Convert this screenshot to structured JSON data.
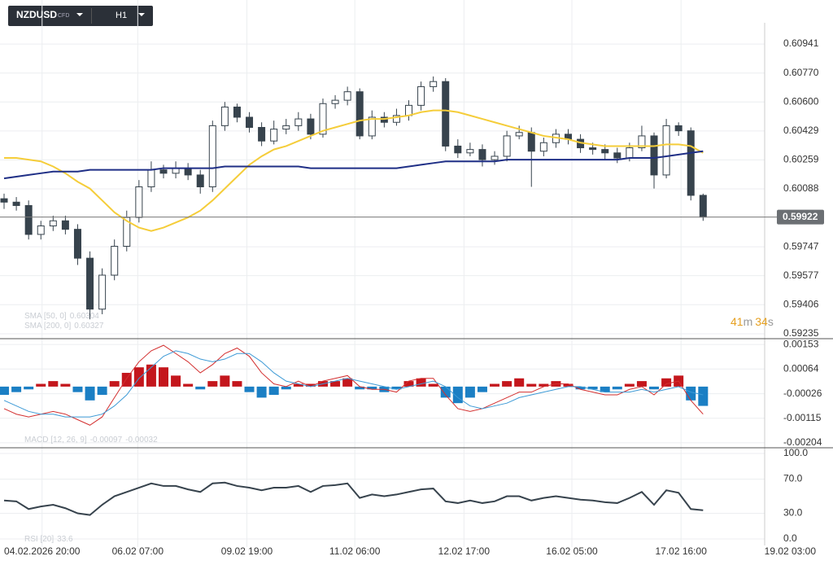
{
  "header": {
    "symbol": "NZDUSD",
    "kind": "CFD",
    "timeframe": "H1"
  },
  "countdown": {
    "minutes": 41,
    "minutes_unit": "m",
    "seconds": 34,
    "seconds_unit": "s"
  },
  "chart_data": [
    {
      "type": "candlestick",
      "xlim": [
        -0.2,
        66
      ],
      "ylim": [
        0.59206,
        0.61066
      ],
      "xticks": [
        {
          "value": 3.1,
          "label": "04.02.2026 20:00"
        },
        {
          "value": 10.9,
          "label": "06.02 07:00"
        },
        {
          "value": 19.8,
          "label": "09.02 19:00"
        },
        {
          "value": 28.6,
          "label": "11.02 06:00"
        },
        {
          "value": 37.5,
          "label": "12.02 17:00"
        },
        {
          "value": 46.3,
          "label": "16.02 05:00"
        },
        {
          "value": 55.2,
          "label": "17.02 16:00"
        },
        {
          "value": 64.1,
          "label": "19.02 03:00"
        }
      ],
      "yticks": [
        0.60941,
        0.6077,
        0.606,
        0.60429,
        0.60259,
        0.60088,
        0.59747,
        0.59577,
        0.59406,
        0.59235
      ],
      "ytick_labels": [
        "0.60941",
        "0.60770",
        "0.60600",
        "0.60429",
        "0.60259",
        "0.60088",
        "0.59747",
        "0.59577",
        "0.59406",
        "0.59235"
      ],
      "last_price": 0.59922,
      "last_price_label": "0.59922",
      "color": "#37434d",
      "open": [
        0.6003,
        0.6001,
        0.5999,
        0.5982,
        0.5987,
        0.599,
        0.5985,
        0.5968,
        0.5938,
        0.5958,
        0.5975,
        0.5992,
        0.601,
        0.602,
        0.6018,
        0.6021,
        0.6017,
        0.601,
        0.6046,
        0.6057,
        0.6051,
        0.6045,
        0.6037,
        0.6044,
        0.6046,
        0.605,
        0.6041,
        0.6059,
        0.6061,
        0.6066,
        0.604,
        0.6051,
        0.6048,
        0.6052,
        0.6058,
        0.6069,
        0.6072,
        0.6034,
        0.603,
        0.6032,
        0.6026,
        0.6028,
        0.604,
        0.6042,
        0.6031,
        0.6036,
        0.6041,
        0.6038,
        0.6033,
        0.6032,
        0.603,
        0.6027,
        0.6033,
        0.604,
        0.6017,
        0.6046,
        0.6043,
        0.6005
      ],
      "high": [
        0.6006,
        0.6004,
        0.6002,
        0.599,
        0.5993,
        0.5993,
        0.5988,
        0.5972,
        0.5962,
        0.5979,
        0.5996,
        0.6014,
        0.6025,
        0.6023,
        0.6025,
        0.6024,
        0.602,
        0.6049,
        0.606,
        0.6059,
        0.6054,
        0.6048,
        0.6049,
        0.605,
        0.6054,
        0.6053,
        0.6062,
        0.6064,
        0.6069,
        0.6068,
        0.6055,
        0.6054,
        0.6056,
        0.6061,
        0.6072,
        0.6075,
        0.6074,
        0.6038,
        0.6036,
        0.6035,
        0.6031,
        0.6043,
        0.6046,
        0.6045,
        0.6039,
        0.6044,
        0.6044,
        0.6041,
        0.6036,
        0.6035,
        0.6033,
        0.6036,
        0.6046,
        0.6042,
        0.605,
        0.6048,
        0.6045,
        0.6006
      ],
      "low": [
        0.5997,
        0.5996,
        0.5979,
        0.5979,
        0.5984,
        0.5982,
        0.5964,
        0.5932,
        0.5935,
        0.5955,
        0.5972,
        0.5989,
        0.6007,
        0.6015,
        0.6015,
        0.6014,
        0.6006,
        0.6007,
        0.6043,
        0.6048,
        0.6042,
        0.6034,
        0.6035,
        0.6041,
        0.6043,
        0.6038,
        0.6039,
        0.6056,
        0.6058,
        0.6038,
        0.6038,
        0.6045,
        0.6046,
        0.6049,
        0.6055,
        0.6066,
        0.6031,
        0.6027,
        0.6028,
        0.6022,
        0.6023,
        0.6025,
        0.6038,
        0.601,
        0.6028,
        0.6033,
        0.6035,
        0.603,
        0.6029,
        0.6026,
        0.6024,
        0.6025,
        0.6031,
        0.6009,
        0.6015,
        0.604,
        0.6002,
        0.599
      ],
      "close": [
        0.6001,
        0.5999,
        0.5982,
        0.5987,
        0.599,
        0.5985,
        0.5968,
        0.5938,
        0.5958,
        0.5975,
        0.5992,
        0.601,
        0.602,
        0.6018,
        0.6021,
        0.6017,
        0.601,
        0.6046,
        0.6057,
        0.6051,
        0.6045,
        0.6037,
        0.6044,
        0.6046,
        0.605,
        0.6041,
        0.6059,
        0.6061,
        0.6066,
        0.604,
        0.6051,
        0.6048,
        0.6052,
        0.6058,
        0.6069,
        0.6072,
        0.6034,
        0.603,
        0.6032,
        0.6026,
        0.6028,
        0.604,
        0.6042,
        0.6031,
        0.6036,
        0.6041,
        0.6038,
        0.6033,
        0.6032,
        0.603,
        0.6027,
        0.6033,
        0.604,
        0.6017,
        0.6046,
        0.6043,
        0.6005,
        0.59922
      ],
      "series": [
        {
          "name": "SMA [50, 0]",
          "last": 0.60304,
          "color": "#f5cd3a",
          "values": [
            0.6027,
            0.6027,
            0.6026,
            0.6025,
            0.6022,
            0.6018,
            0.6013,
            0.6009,
            0.6002,
            0.5995,
            0.599,
            0.5986,
            0.5984,
            0.5986,
            0.5989,
            0.5992,
            0.5996,
            0.6002,
            0.6009,
            0.6016,
            0.6023,
            0.6028,
            0.6032,
            0.6034,
            0.6037,
            0.604,
            0.6043,
            0.6045,
            0.6047,
            0.6049,
            0.605,
            0.605,
            0.6051,
            0.6052,
            0.6054,
            0.6055,
            0.6055,
            0.6054,
            0.6052,
            0.605,
            0.6048,
            0.6046,
            0.6044,
            0.6042,
            0.604,
            0.6039,
            0.6038,
            0.6036,
            0.6035,
            0.6034,
            0.6034,
            0.6034,
            0.6034,
            0.6034,
            0.6035,
            0.6035,
            0.6034,
            0.603
          ]
        },
        {
          "name": "SMA [200, 0]",
          "last": 0.60327,
          "color": "#1f2f86",
          "values": [
            0.6015,
            0.6016,
            0.6017,
            0.6018,
            0.6019,
            0.6019,
            0.6019,
            0.602,
            0.602,
            0.602,
            0.602,
            0.602,
            0.602,
            0.6021,
            0.6021,
            0.6021,
            0.6021,
            0.6021,
            0.6022,
            0.6022,
            0.6022,
            0.6022,
            0.6022,
            0.6022,
            0.6022,
            0.6021,
            0.6021,
            0.6021,
            0.6021,
            0.6021,
            0.6021,
            0.6021,
            0.6021,
            0.6022,
            0.6023,
            0.6024,
            0.6025,
            0.6025,
            0.6025,
            0.6025,
            0.6025,
            0.6026,
            0.6026,
            0.6026,
            0.6026,
            0.6026,
            0.6026,
            0.6026,
            0.6026,
            0.6026,
            0.6026,
            0.6027,
            0.6027,
            0.6027,
            0.6028,
            0.6029,
            0.603,
            0.6031
          ]
        }
      ]
    },
    {
      "type": "macd",
      "name": "MACD [12, 26, 9]",
      "last": [
        -0.00097,
        -0.00032
      ],
      "ylim": [
        -0.00222,
        0.00174
      ],
      "yticks": [
        0.00153,
        0.00064,
        -0.00026,
        -0.00115,
        -0.00204
      ],
      "up_color": "#c4161c",
      "down_color": "#1b7fc4",
      "histogram": [
        -0.0003,
        -0.0002,
        -0.0001,
        0.0001,
        0.0002,
        0.0001,
        -0.0002,
        -0.0005,
        -0.0003,
        0.0002,
        0.0005,
        0.0007,
        0.0008,
        0.0007,
        0.0004,
        0.0001,
        -0.0001,
        0.0002,
        0.0004,
        0.0002,
        -0.0002,
        -0.0004,
        -0.0003,
        -0.0001,
        0.0001,
        0.0001,
        0.0002,
        0.0002,
        0.0003,
        -0.0001,
        -0.0001,
        -0.0002,
        -0.0001,
        0.0002,
        0.0003,
        0.0001,
        -0.0004,
        -0.0006,
        -0.0004,
        -0.0002,
        0.0001,
        0.0002,
        0.0003,
        0.0001,
        0.0001,
        0.0002,
        0.0001,
        -0.0001,
        -0.0001,
        -0.0002,
        -0.0001,
        0.0001,
        0.0002,
        -0.0001,
        0.0003,
        0.0004,
        -0.0005,
        -0.0007
      ],
      "series": [
        {
          "color": "#d32f2f",
          "values": [
            -0.0008,
            -0.001,
            -0.0011,
            -0.001,
            -0.0009,
            -0.001,
            -0.0012,
            -0.0014,
            -0.0011,
            -0.0004,
            0.0003,
            0.0009,
            0.0013,
            0.0015,
            0.0012,
            0.0009,
            0.0005,
            0.0008,
            0.0012,
            0.0014,
            0.0011,
            0.0005,
            0.0001,
            0,
            0.0002,
            0,
            0.0002,
            0.0003,
            0.0004,
            0,
            -0.0001,
            -0.0001,
            -0.0002,
            0.0002,
            0.0003,
            0.0003,
            -0.0003,
            -0.0008,
            -0.0009,
            -0.0008,
            -0.0006,
            -0.0004,
            -0.0002,
            -0.0002,
            0,
            0.0001,
            0.0001,
            -0.0001,
            -0.0002,
            -0.0003,
            -0.0003,
            -0.0001,
            0,
            -0.0003,
            0.0001,
            0.0002,
            -0.0005,
            -0.001
          ]
        },
        {
          "color": "#3d9ad6",
          "values": [
            -0.0005,
            -0.0007,
            -0.0009,
            -0.001,
            -0.001,
            -0.0011,
            -0.0011,
            -0.0011,
            -0.001,
            -0.0007,
            -0.0003,
            0.0003,
            0.0007,
            0.0011,
            0.0013,
            0.0012,
            0.001,
            0.0009,
            0.001,
            0.0012,
            0.0012,
            0.0009,
            0.0005,
            0.0002,
            0.0001,
            0,
            0.0001,
            0.0002,
            0.0003,
            0.0002,
            0.0001,
            0,
            -0.0001,
            0,
            0.0001,
            0.0002,
            0,
            -0.0004,
            -0.0007,
            -0.0008,
            -0.0007,
            -0.0006,
            -0.0004,
            -0.0003,
            -0.0002,
            -0.0001,
            0,
            0,
            -0.0001,
            -0.0002,
            -0.0002,
            -0.0002,
            -0.0001,
            -0.0002,
            -0.0001,
            0,
            -0.0002,
            -0.0003
          ]
        }
      ]
    },
    {
      "type": "line",
      "name": "RSI [20]",
      "last": 33.6,
      "ylim": [
        -7.6,
        106.7
      ],
      "color": "#37434d",
      "yticks": [
        {
          "value": 100,
          "label": "100.0"
        },
        {
          "value": 70,
          "label": "70.0"
        },
        {
          "value": 30,
          "label": "30.0"
        },
        {
          "value": 0,
          "label": "0.0"
        }
      ],
      "values": [
        45,
        44,
        35,
        38,
        40,
        36,
        30,
        28,
        40,
        50,
        55,
        60,
        65,
        62,
        62,
        58,
        55,
        65,
        66,
        62,
        60,
        57,
        60,
        60,
        62,
        55,
        62,
        63,
        65,
        48,
        52,
        50,
        52,
        55,
        58,
        59,
        44,
        42,
        45,
        42,
        44,
        50,
        50,
        45,
        48,
        50,
        48,
        46,
        45,
        43,
        42,
        48,
        55,
        40,
        57,
        54,
        35,
        33.6
      ]
    }
  ]
}
